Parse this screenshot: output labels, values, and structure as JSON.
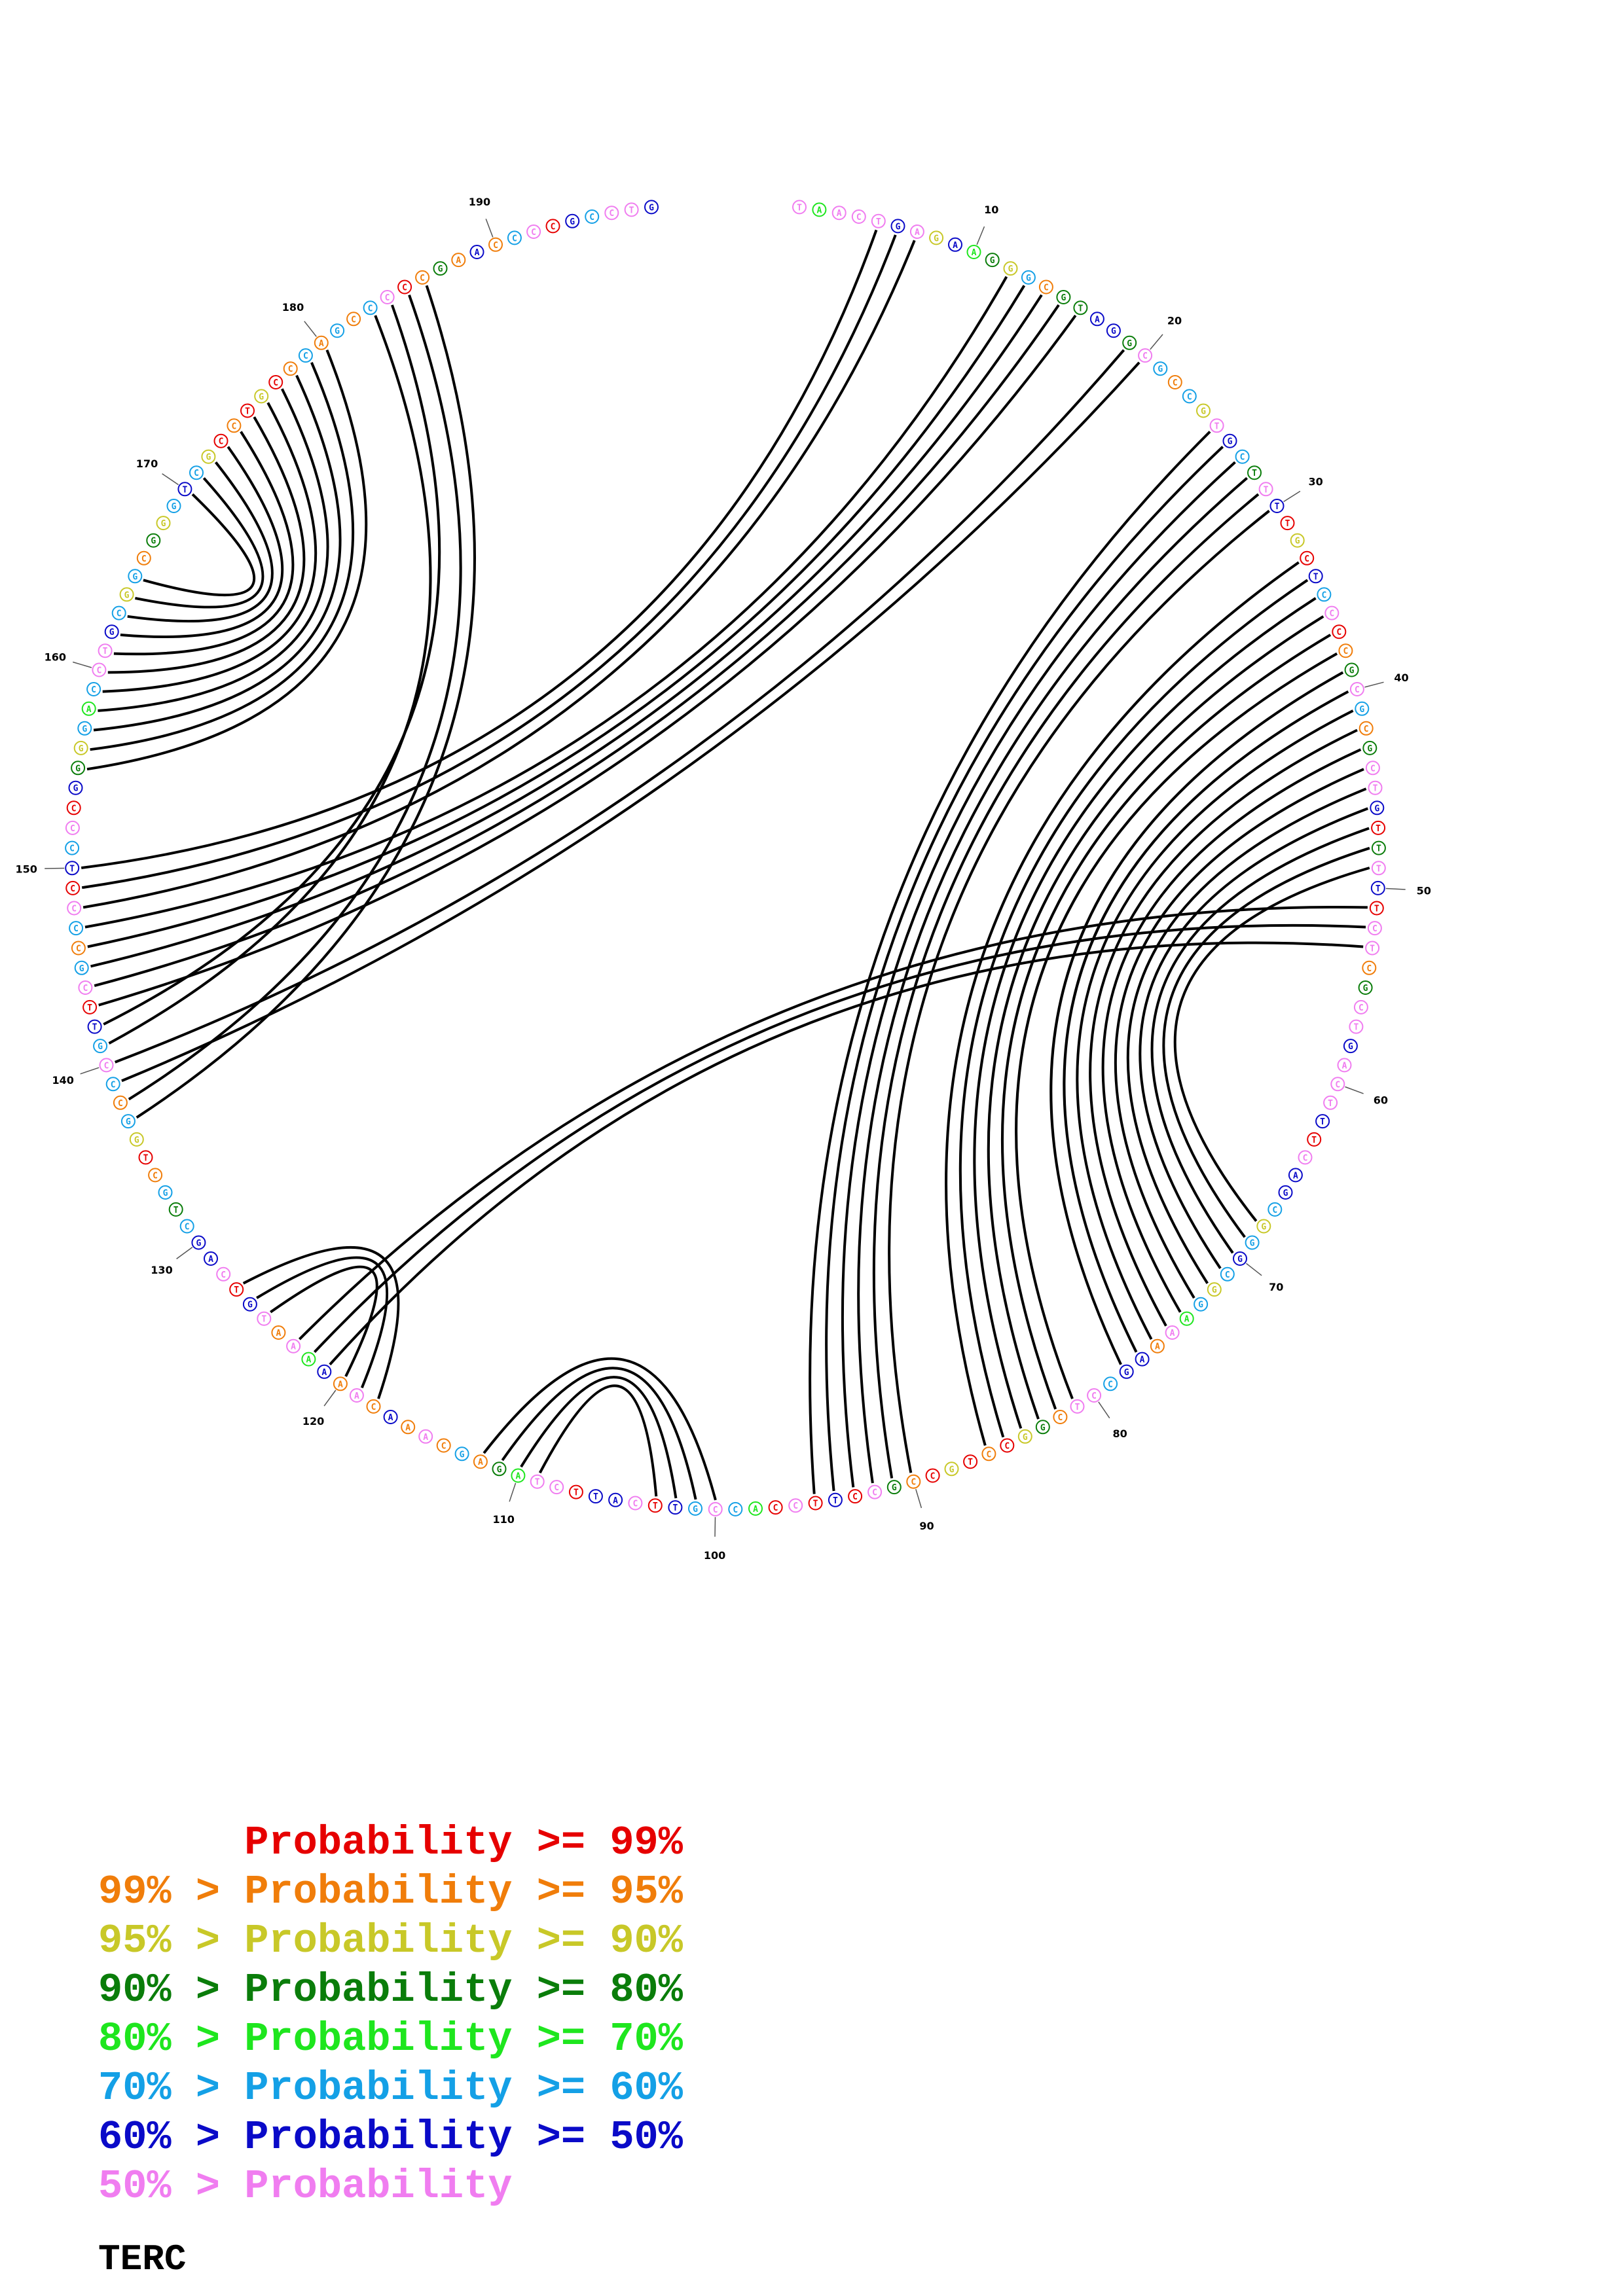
{
  "sequence": "TAACTGAGAAGGGCGTAGGCGCCGTGCTTTTGCTCCCCGCGCGCTGTTTTTCTCGCTGACTTTCAGCGGGCGGAAAAGCCTCGGCCTGCCGCCTTCCACCGTTCATTCTAGAGCAAACAAAAAATGTCAGCTGCTGGCCCGTTCGCCCCTCCCGGGGACCTGCGGCGGGTCGCCTGCCCAGCCCCCGAACCCCGCCTG",
  "colors": {
    "p99": "#e60000",
    "p95": "#f07d0a",
    "p90": "#c8c828",
    "p80": "#0a7d0a",
    "p70": "#1ee61e",
    "p60": "#14a0e6",
    "p50": "#0a0ac8",
    "plow": "#f07df0"
  },
  "base_prob_classes": "",
  "tick_labels": [
    "10",
    "20",
    "30",
    "40",
    "50",
    "60",
    "70",
    "80",
    "90",
    "100",
    "110",
    "120",
    "130",
    "140",
    "150",
    "160",
    "170",
    "180",
    "190"
  ],
  "pairs": [
    [
      5,
      150
    ],
    [
      6,
      149
    ],
    [
      7,
      148
    ],
    [
      12,
      147
    ],
    [
      13,
      146
    ],
    [
      14,
      145
    ],
    [
      15,
      144
    ],
    [
      16,
      143
    ],
    [
      19,
      140
    ],
    [
      20,
      139
    ],
    [
      25,
      95
    ],
    [
      26,
      94
    ],
    [
      27,
      93
    ],
    [
      28,
      92
    ],
    [
      29,
      91
    ],
    [
      30,
      90
    ],
    [
      33,
      86
    ],
    [
      34,
      85
    ],
    [
      35,
      84
    ],
    [
      36,
      83
    ],
    [
      37,
      82
    ],
    [
      38,
      81
    ],
    [
      39,
      78
    ],
    [
      40,
      77
    ],
    [
      41,
      76
    ],
    [
      42,
      75
    ],
    [
      43,
      74
    ],
    [
      44,
      73
    ],
    [
      45,
      72
    ],
    [
      46,
      71
    ],
    [
      47,
      70
    ],
    [
      48,
      69
    ],
    [
      49,
      68
    ],
    [
      51,
      123
    ],
    [
      52,
      122
    ],
    [
      53,
      121
    ],
    [
      100,
      112
    ],
    [
      101,
      111
    ],
    [
      102,
      110
    ],
    [
      103,
      109
    ],
    [
      118,
      127
    ],
    [
      119,
      126
    ],
    [
      120,
      125
    ],
    [
      155,
      180
    ],
    [
      156,
      179
    ],
    [
      157,
      178
    ],
    [
      158,
      177
    ],
    [
      159,
      176
    ],
    [
      160,
      175
    ],
    [
      161,
      174
    ],
    [
      162,
      173
    ],
    [
      163,
      172
    ],
    [
      164,
      171
    ],
    [
      165,
      170
    ],
    [
      183,
      141
    ],
    [
      184,
      142
    ],
    [
      185,
      138
    ],
    [
      186,
      137
    ]
  ],
  "legend": [
    {
      "text": "      Probability >= 99%",
      "color_key": "p99"
    },
    {
      "text": "99% > Probability >= 95%",
      "color_key": "p95"
    },
    {
      "text": "95% > Probability >= 90%",
      "color_key": "p90"
    },
    {
      "text": "90% > Probability >= 80%",
      "color_key": "p80"
    },
    {
      "text": "80% > Probability >= 70%",
      "color_key": "p70"
    },
    {
      "text": "70% > Probability >= 60%",
      "color_key": "p60"
    },
    {
      "text": "60% > Probability >= 50%",
      "color_key": "p50"
    },
    {
      "text": "50% > Probability",
      "color_key": "plow"
    }
  ],
  "title": "TERC"
}
